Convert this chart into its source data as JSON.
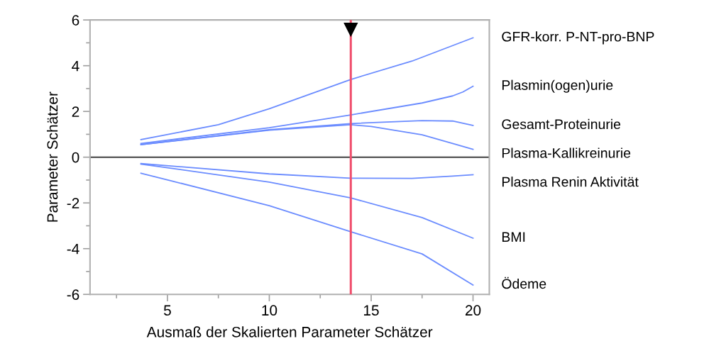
{
  "chart_data": {
    "type": "line",
    "xlabel": "Ausmaß der Skalierten Parameter Schätzer",
    "ylabel": "Parameter Schätzer",
    "xlim": [
      1.2,
      20.8
    ],
    "ylim": [
      -6,
      6
    ],
    "xticks": [
      {
        "value": 2.5,
        "label": null
      },
      5,
      {
        "value": 7.5,
        "label": null
      },
      10,
      {
        "value": 12.5,
        "label": null
      },
      15,
      {
        "value": 17.5,
        "label": null
      },
      20
    ],
    "yticks": [
      -6,
      {
        "value": -5,
        "label": null
      },
      -4,
      {
        "value": -3,
        "label": null
      },
      -2,
      {
        "value": -1,
        "label": null
      },
      0,
      {
        "value": 1,
        "label": null
      },
      2,
      {
        "value": 3,
        "label": null
      },
      4,
      {
        "value": 5,
        "label": null
      },
      6
    ],
    "grid": false,
    "legend": false,
    "marker": "none",
    "line_style": "solid",
    "ref_lines": [
      {
        "axis": "y",
        "value": 0,
        "color": "#404040"
      },
      {
        "axis": "x",
        "value": 14,
        "color": "#f0506e"
      }
    ],
    "series": [
      {
        "name": "GFR-korr. P-NT-pro-BNP",
        "color": "#6b8cff",
        "x": [
          3.7,
          7.5,
          10,
          14,
          17,
          20
        ],
        "values": [
          0.77,
          1.42,
          2.12,
          3.4,
          4.2,
          5.22
        ]
      },
      {
        "name": "Plasmin(ogen)urie",
        "color": "#6b8cff",
        "x": [
          3.7,
          10,
          14,
          17.5,
          19,
          19.5,
          20
        ],
        "values": [
          0.6,
          1.29,
          1.85,
          2.37,
          2.68,
          2.85,
          3.1
        ]
      },
      {
        "name": "Gesamt-Proteinurie",
        "color": "#6b8cff",
        "x": [
          3.7,
          10,
          14,
          17.5,
          19,
          20
        ],
        "values": [
          0.55,
          1.2,
          1.47,
          1.6,
          1.58,
          1.39
        ]
      },
      {
        "name": "Plasma-Kallikreinurie",
        "color": "#6b8cff",
        "x": [
          3.7,
          10,
          14,
          15,
          17.5,
          19,
          20
        ],
        "values": [
          0.55,
          1.18,
          1.42,
          1.34,
          0.98,
          0.6,
          0.34
        ]
      },
      {
        "name": "Plasma Renin Aktivität",
        "color": "#6b8cff",
        "x": [
          3.7,
          10,
          14,
          17,
          19,
          20
        ],
        "values": [
          -0.28,
          -0.73,
          -0.92,
          -0.93,
          -0.83,
          -0.77
        ]
      },
      {
        "name": "BMI",
        "color": "#6b8cff",
        "x": [
          3.7,
          10,
          14,
          17.5,
          20
        ],
        "values": [
          -0.3,
          -1.09,
          -1.78,
          -2.64,
          -3.54
        ]
      },
      {
        "name": "Ödeme",
        "color": "#6b8cff",
        "x": [
          3.7,
          10,
          14,
          17.5,
          20
        ],
        "values": [
          -0.7,
          -2.12,
          -3.26,
          -4.23,
          -5.59
        ]
      }
    ]
  }
}
